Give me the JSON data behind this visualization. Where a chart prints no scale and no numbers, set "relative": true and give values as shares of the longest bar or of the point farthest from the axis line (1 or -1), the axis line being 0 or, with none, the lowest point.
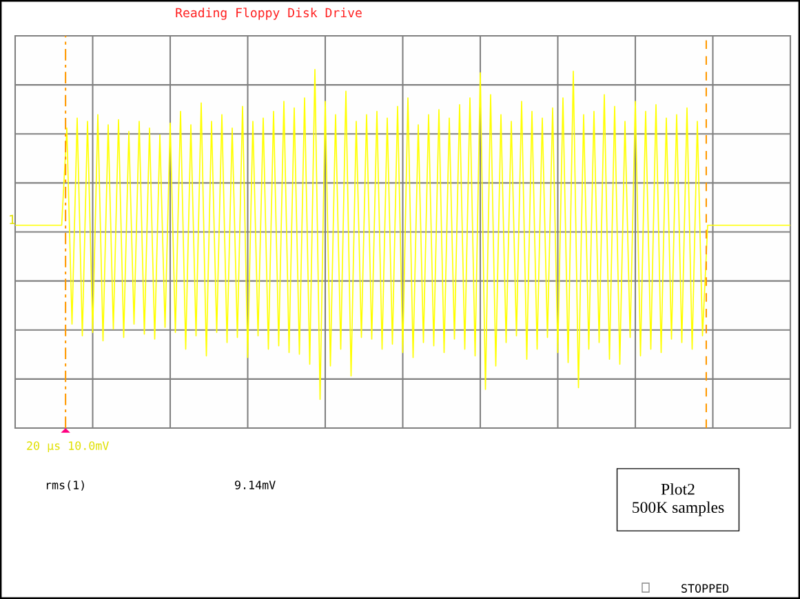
{
  "chart_data": {
    "type": "line",
    "relative": true,
    "title": "Reading Floppy Disk Drive",
    "categories": [
      null,
      null,
      null,
      null,
      null,
      null,
      null,
      null,
      null,
      null,
      null,
      null,
      null,
      null,
      null,
      null,
      null,
      null,
      null,
      null,
      null,
      null,
      null,
      null,
      null,
      null,
      null,
      null,
      null,
      null,
      null,
      null,
      null,
      null,
      null,
      null,
      null,
      null,
      null,
      null,
      null,
      null,
      null,
      null,
      null,
      null,
      null,
      null,
      null,
      null,
      null,
      null,
      null,
      null,
      null,
      null,
      null,
      null,
      null,
      null,
      null,
      null,
      null,
      null,
      null,
      null,
      null,
      null,
      null,
      null,
      null,
      null,
      null,
      null,
      null,
      null,
      null,
      null,
      null,
      null,
      null,
      null,
      null,
      null,
      null,
      null,
      null,
      null,
      null,
      null,
      null,
      null,
      null,
      null,
      null,
      null,
      null,
      null,
      null,
      null,
      null,
      null,
      null,
      null,
      null,
      null,
      null,
      null,
      null,
      null,
      null,
      null,
      null,
      null,
      null,
      null,
      null,
      null,
      null,
      null,
      null,
      null,
      null,
      null,
      null,
      null,
      null,
      null,
      null,
      null,
      null,
      null,
      null,
      null,
      null,
      null,
      null,
      null,
      null,
      null,
      null,
      null,
      null,
      null,
      null,
      null,
      null,
      null,
      null,
      null,
      null
    ],
    "grid": true,
    "line_style": "solid",
    "series": [
      {
        "color": "#ffff00",
        "values": [
          0.04,
          0.04,
          0.04,
          0.04,
          0.04,
          0.04,
          0.04,
          0.04,
          0.04,
          0.04,
          0.62,
          -0.55,
          0.68,
          -0.62,
          0.66,
          -0.6,
          0.7,
          -0.65,
          0.64,
          -0.58,
          0.67,
          -0.63,
          0.6,
          -0.55,
          0.66,
          -0.61,
          0.62,
          -0.64,
          0.58,
          -0.57,
          0.65,
          -0.6,
          0.72,
          -0.7,
          0.64,
          -0.62,
          0.77,
          -0.74,
          0.66,
          -0.6,
          0.7,
          -0.66,
          0.62,
          -0.63,
          0.75,
          -0.75,
          0.66,
          -0.62,
          0.68,
          -0.7,
          0.72,
          -0.68,
          0.78,
          -0.72,
          0.74,
          -0.73,
          0.8,
          -0.79,
          0.97,
          -1.0,
          0.78,
          -0.8,
          0.7,
          -0.7,
          0.84,
          -0.86,
          0.66,
          -0.63,
          0.7,
          -0.64,
          0.72,
          -0.7,
          0.68,
          -0.67,
          0.75,
          -0.72,
          0.8,
          -0.75,
          0.64,
          -0.66,
          0.7,
          -0.68,
          0.73,
          -0.72,
          0.68,
          -0.64,
          0.76,
          -0.7,
          0.8,
          -0.74,
          0.95,
          -0.94,
          0.82,
          -0.8,
          0.7,
          -0.66,
          0.66,
          -0.62,
          0.78,
          -0.76,
          0.72,
          -0.7,
          0.68,
          -0.63,
          0.74,
          -0.72,
          0.8,
          -0.78,
          0.96,
          -0.93,
          0.7,
          -0.7,
          0.72,
          -0.66,
          0.82,
          -0.76,
          0.75,
          -0.79,
          0.66,
          -0.63,
          0.78,
          -0.74,
          0.72,
          -0.7,
          0.76,
          -0.72,
          0.68,
          -0.64,
          0.7,
          -0.66,
          0.74,
          -0.7,
          0.66,
          -0.62,
          0.04,
          0.04,
          0.04,
          0.04,
          0.04,
          0.04,
          0.04,
          0.04,
          0.04,
          0.04,
          0.04,
          0.04,
          0.04,
          0.04,
          0.04,
          0.04,
          0.04
        ]
      }
    ],
    "annotations": [
      "1",
      "20 µs 10.0mV",
      "rms(1)",
      "9.14mV",
      "Plot2\n500K samples",
      "STOPPED"
    ]
  }
}
